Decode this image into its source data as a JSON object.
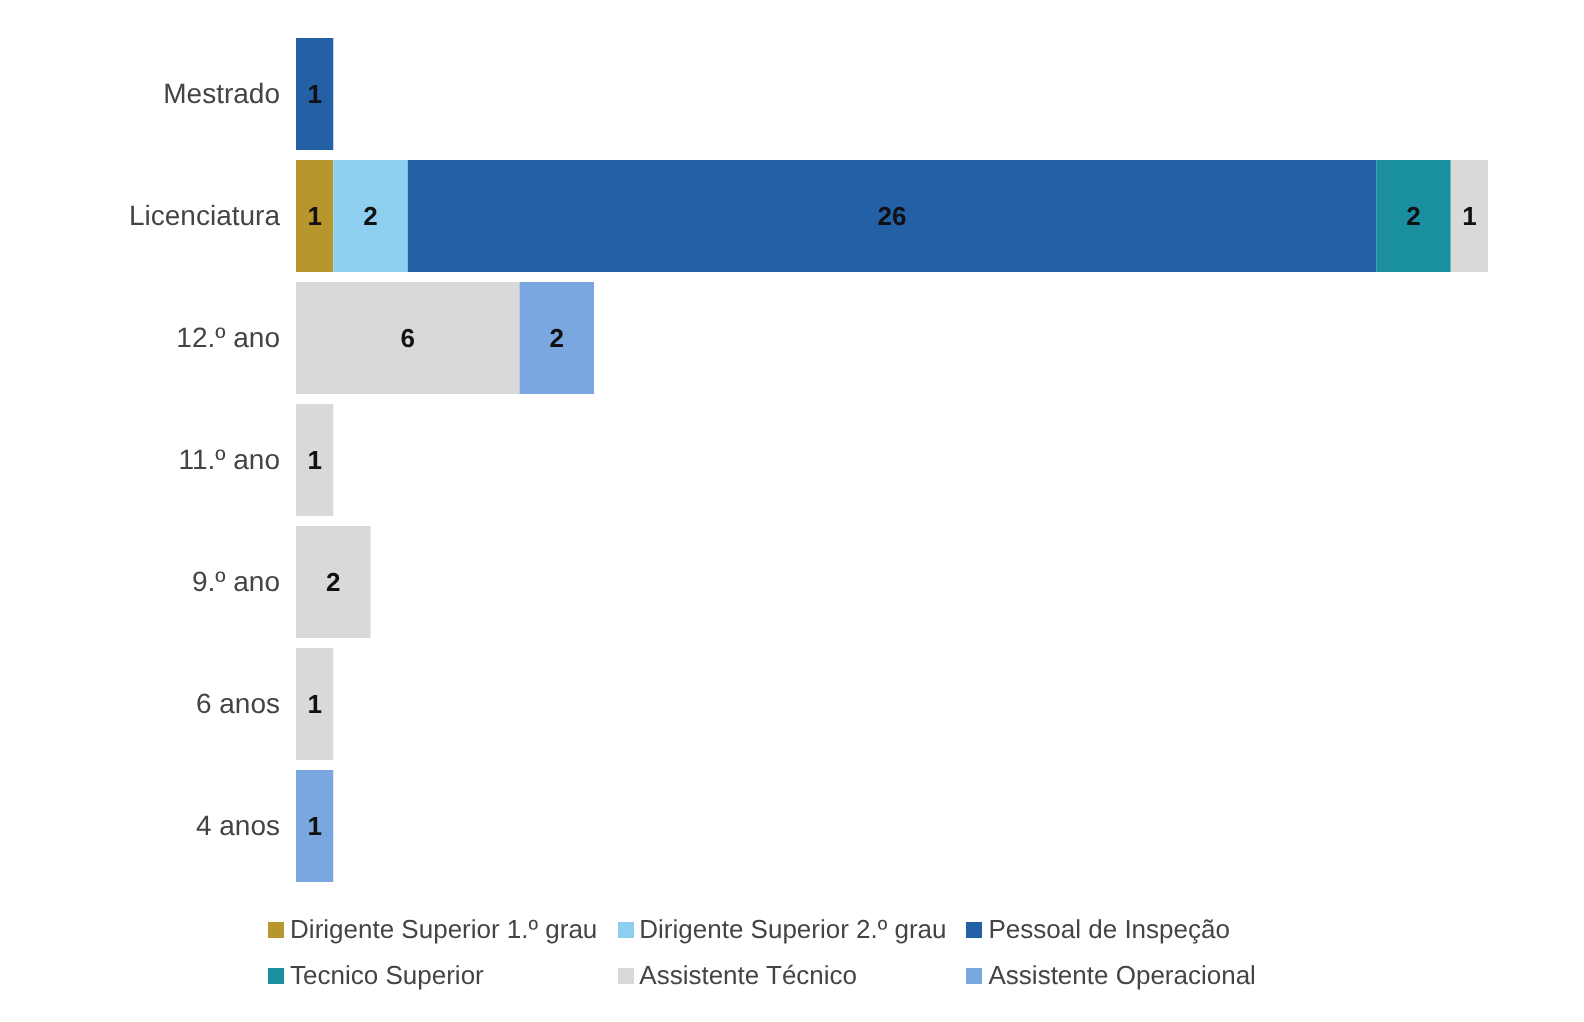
{
  "chart_data": {
    "type": "bar",
    "orientation": "horizontal",
    "stacked": true,
    "data_labels": true,
    "legend": "bottom",
    "grid": false,
    "categories": [
      "Mestrado",
      "Licenciatura",
      "12.º ano",
      "11.º ano",
      "9.º ano",
      "6 anos",
      "4 anos"
    ],
    "series": [
      {
        "name": "Dirigente Superior 1.º grau",
        "color": "#b8962e",
        "values": [
          null,
          1,
          null,
          null,
          null,
          null,
          null
        ]
      },
      {
        "name": "Dirigente Superior 2.º grau",
        "color": "#8ecff0",
        "values": [
          null,
          2,
          null,
          null,
          null,
          null,
          null
        ]
      },
      {
        "name": "Pessoal de Inspeção",
        "color": "#2360a5",
        "values": [
          1,
          26,
          null,
          null,
          null,
          null,
          null
        ]
      },
      {
        "name": "Tecnico Superior",
        "color": "#1a8fa0",
        "values": [
          null,
          2,
          null,
          null,
          null,
          null,
          null
        ]
      },
      {
        "name": "Assistente Técnico",
        "color": "#d9d9d9",
        "values": [
          null,
          1,
          6,
          1,
          2,
          1,
          null
        ]
      },
      {
        "name": "Assistente Operacional",
        "color": "#7aa7e0",
        "values": [
          null,
          null,
          2,
          null,
          null,
          null,
          1
        ]
      }
    ]
  }
}
